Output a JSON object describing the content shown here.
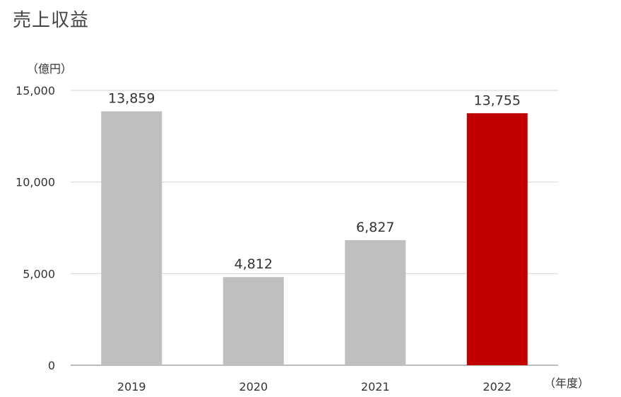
{
  "title": "売上収益",
  "chart_data": {
    "type": "bar",
    "title": "売上収益",
    "y_unit_label": "（億円）",
    "x_unit_label": "（年度）",
    "categories": [
      "2019",
      "2020",
      "2021",
      "2022"
    ],
    "values": [
      13859,
      4812,
      6827,
      13755
    ],
    "value_labels": [
      "13,859",
      "4,812",
      "6,827",
      "13,755"
    ],
    "ylim": [
      0,
      15000
    ],
    "yticks": [
      0,
      5000,
      10000,
      15000
    ],
    "ytick_labels": [
      "0",
      "5,000",
      "10,000",
      "15,000"
    ],
    "grid": true,
    "colors": {
      "default": "#bfbfbf",
      "highlight": "#c00000",
      "grid": "#d9d9d9",
      "axis": "#a6a6a6"
    },
    "highlight_category": "2022"
  }
}
